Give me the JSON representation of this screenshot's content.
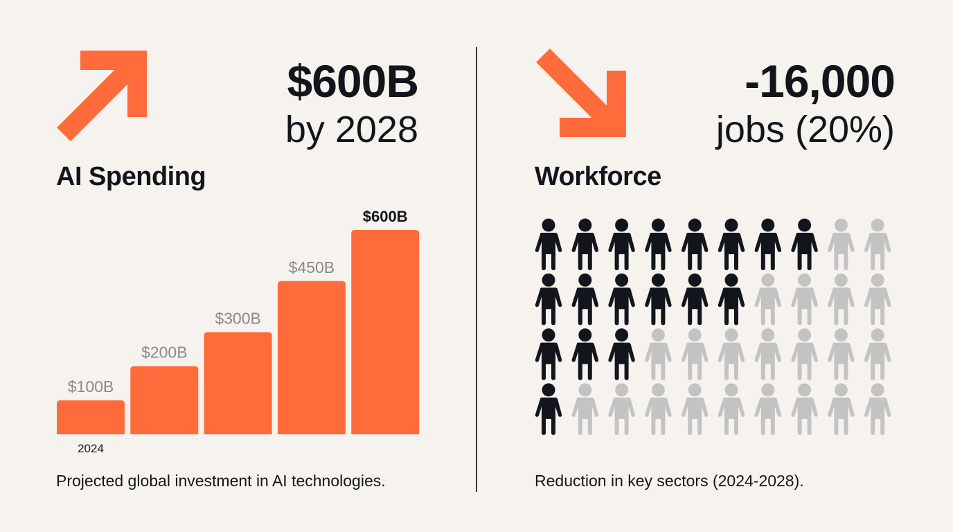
{
  "colors": {
    "accent": "#ff6b3a",
    "dark": "#12161c",
    "muted": "#c3c3c3",
    "background": "#f6f3ee",
    "label_grey": "#8a8a8a"
  },
  "left": {
    "icon": "arrow-up-right-icon",
    "headline": "$600B",
    "subline": "by 2028",
    "heading": "AI Spending",
    "caption": "Projected global investment in AI technologies."
  },
  "right": {
    "icon": "arrow-down-right-icon",
    "headline": "-16,000",
    "subline": "jobs (20%)",
    "heading": "Workforce",
    "caption": "Reduction in key sectors (2024-2028).",
    "pictogram": {
      "icon": "person-icon",
      "rows": 4,
      "columns": 10,
      "highlighted_per_row": [
        8,
        6,
        3,
        1
      ]
    }
  },
  "chart_data": {
    "type": "bar",
    "categories": [
      "2024",
      "",
      "",
      "",
      ""
    ],
    "values": [
      100,
      200,
      300,
      450,
      600
    ],
    "data_labels": [
      "$100B",
      "$200B",
      "$300B",
      "$450B",
      "$600B"
    ],
    "units": "billion USD",
    "ylim": [
      0,
      600
    ],
    "grid": false
  }
}
